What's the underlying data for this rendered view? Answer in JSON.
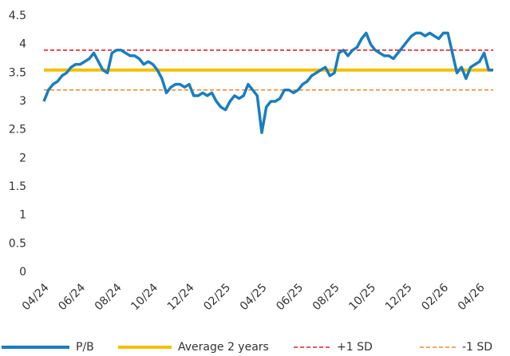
{
  "chart_data": {
    "type": "line",
    "categories": [
      "04/24",
      null,
      null,
      null,
      null,
      null,
      null,
      null,
      "06/24",
      null,
      null,
      null,
      null,
      null,
      null,
      null,
      "08/24",
      null,
      null,
      null,
      null,
      null,
      null,
      null,
      "10/24",
      null,
      null,
      null,
      null,
      null,
      null,
      null,
      "12/24",
      null,
      null,
      null,
      null,
      null,
      null,
      null,
      "02/25",
      null,
      null,
      null,
      null,
      null,
      null,
      null,
      "04/25",
      null,
      null,
      null,
      null,
      null,
      null,
      null,
      "06/25",
      null,
      null,
      null,
      null,
      null,
      null,
      null,
      "08/25",
      null,
      null,
      null,
      null,
      null,
      null,
      null,
      "10/25",
      null,
      null,
      null,
      null,
      null,
      null,
      null,
      "12/25",
      null,
      null,
      null,
      null,
      null,
      null,
      null,
      "02/26",
      null,
      null,
      null,
      null,
      null,
      null,
      null,
      "04/26",
      null,
      null,
      null
    ],
    "series": [
      {
        "name": "P/B",
        "color": "#1a7dc0",
        "values": [
          3.0,
          3.2,
          3.3,
          3.35,
          3.45,
          3.5,
          3.6,
          3.65,
          3.65,
          3.7,
          3.75,
          3.85,
          3.7,
          3.55,
          3.5,
          3.85,
          3.9,
          3.9,
          3.85,
          3.8,
          3.8,
          3.75,
          3.65,
          3.7,
          3.65,
          3.55,
          3.4,
          3.15,
          3.25,
          3.3,
          3.3,
          3.25,
          3.3,
          3.1,
          3.1,
          3.15,
          3.1,
          3.15,
          3.0,
          2.9,
          2.85,
          3.0,
          3.1,
          3.05,
          3.1,
          3.3,
          3.2,
          3.1,
          2.45,
          2.9,
          3.0,
          3.0,
          3.05,
          3.2,
          3.2,
          3.15,
          3.2,
          3.3,
          3.35,
          3.45,
          3.5,
          3.55,
          3.6,
          3.45,
          3.5,
          3.85,
          3.9,
          3.8,
          3.9,
          3.95,
          4.1,
          4.2,
          4.0,
          3.9,
          3.85,
          3.8,
          3.8,
          3.75,
          3.85,
          3.95,
          4.05,
          4.15,
          4.2,
          4.2,
          4.15,
          4.2,
          4.15,
          4.1,
          4.2,
          4.2,
          3.85,
          3.5,
          3.6,
          3.4,
          3.6,
          3.65,
          3.7,
          3.85,
          3.55,
          3.55
        ]
      }
    ],
    "reference_lines": [
      {
        "name": "Average 2 years",
        "color": "#f5c000",
        "value": 3.55,
        "style": "solid"
      },
      {
        "name": "+1 SD",
        "color": "#e0202a",
        "value": 3.9,
        "style": "dashed"
      },
      {
        "name": "-1 SD",
        "color": "#f08a30",
        "value": 3.2,
        "style": "dashed"
      }
    ],
    "ylim": [
      0,
      4.5
    ],
    "yticks": [
      0,
      0.5,
      1,
      1.5,
      2,
      2.5,
      3,
      3.5,
      4,
      4.5
    ],
    "grid": false,
    "legend": "bottom"
  }
}
